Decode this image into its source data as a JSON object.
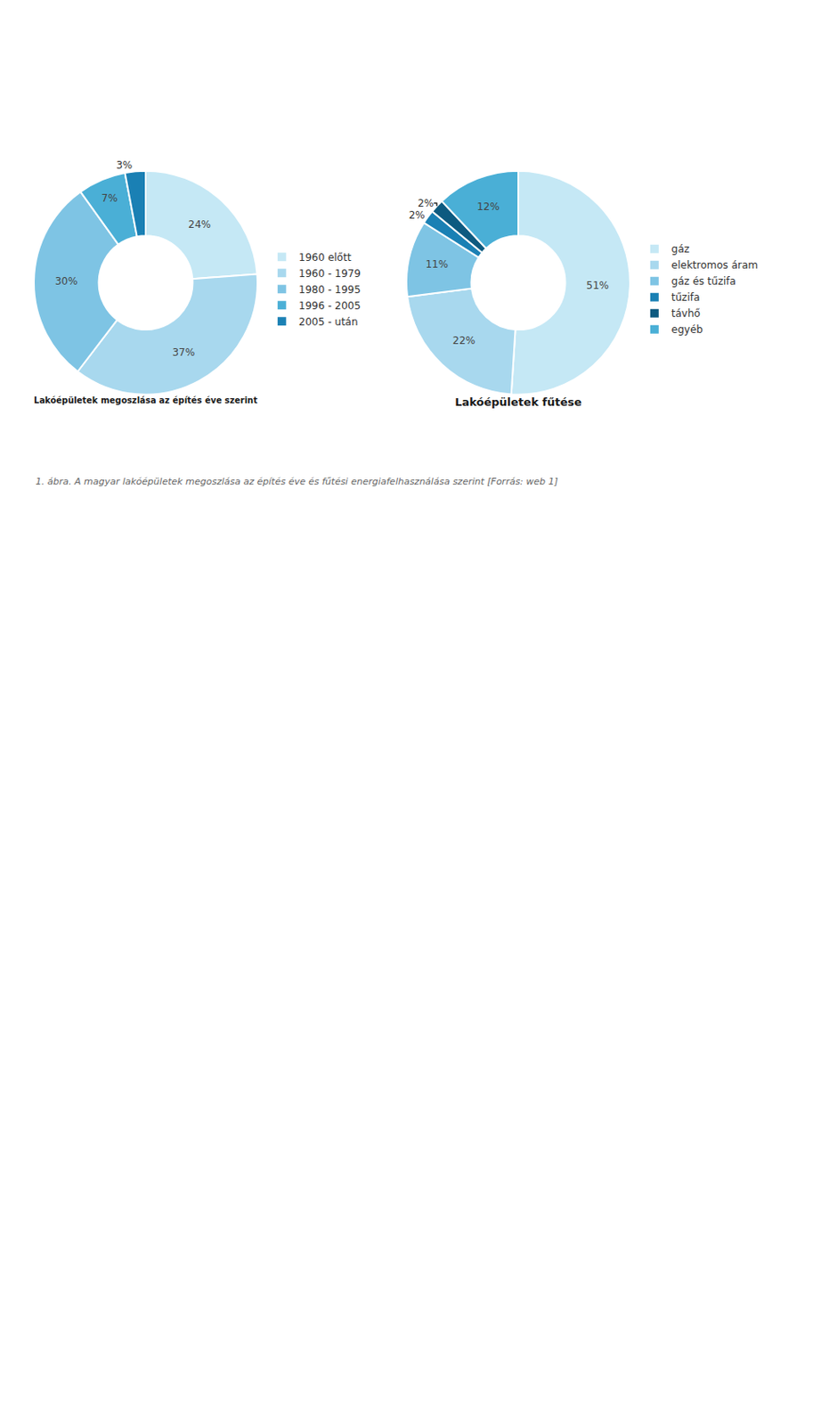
{
  "chart_data": [
    {
      "type": "pie",
      "title": "Lakóépületek megoszlása az építés éve szerint",
      "categories": [
        "1960 előtt",
        "1960 - 1979",
        "1980 - 1995",
        "1996 - 2005",
        "2005 - után"
      ],
      "values": [
        24,
        37,
        30,
        7,
        3
      ],
      "value_labels": [
        "24%",
        "37%",
        "30%",
        "7%",
        "3%"
      ],
      "colors": [
        "#c5e8f5",
        "#a8d8ee",
        "#7ec4e4",
        "#4aafd6",
        "#1a80b4"
      ],
      "data_labels": true,
      "legend": "right",
      "annotations": [
        "1. ábra. A magyar lakóépületek megoszlása az építés éve és fűtési energiafelhasználása szerint [Forrás: web 1]"
      ]
    },
    {
      "type": "pie",
      "title": "Lakóépületek fűtése",
      "categories": [
        "gáz",
        "elektromos áram",
        "gáz és tűzifa",
        "tűzifa",
        "távhő",
        "egyéb"
      ],
      "values": [
        51,
        22,
        11,
        2,
        2,
        12
      ],
      "value_labels": [
        "51%",
        "22%",
        "11%",
        "2%",
        "2%",
        "12%"
      ],
      "colors": [
        "#c5e8f5",
        "#a8d8ee",
        "#7ec4e4",
        "#1a80b4",
        "#0d5a80",
        "#4aafd6"
      ],
      "data_labels": true,
      "legend": "right"
    }
  ]
}
